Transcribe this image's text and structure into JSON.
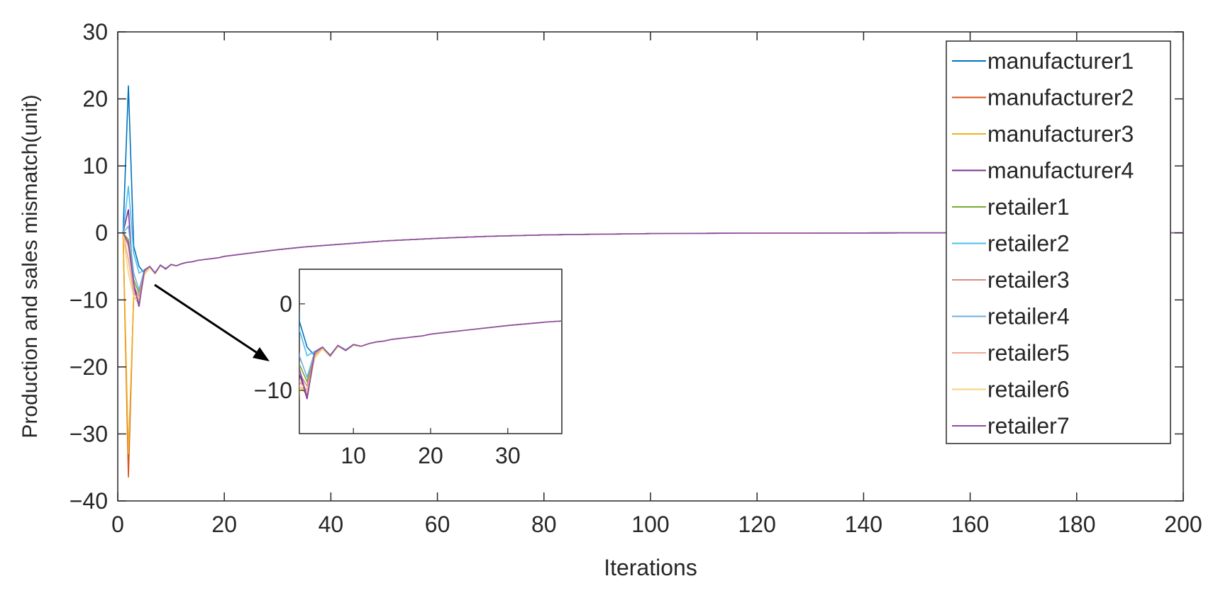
{
  "chart_data": {
    "type": "line",
    "title": "",
    "xlabel": "Iterations",
    "ylabel": "Production and sales mismatch(unit)",
    "xlim": [
      0,
      200
    ],
    "ylim": [
      -40,
      30
    ],
    "xticks": [
      0,
      20,
      40,
      60,
      80,
      100,
      120,
      140,
      160,
      180,
      200
    ],
    "yticks": [
      -40,
      -30,
      -20,
      -10,
      0,
      10,
      20,
      30
    ],
    "grid": false,
    "legend_position": "top-right",
    "x": [
      1,
      2,
      3,
      4,
      5,
      6,
      7,
      8,
      9,
      10,
      11,
      12,
      13,
      14,
      15,
      16,
      17,
      18,
      19,
      20,
      25,
      30,
      35,
      40,
      45,
      50,
      60,
      70,
      80,
      90,
      100,
      110,
      120,
      130,
      140,
      150,
      160,
      170,
      180,
      190,
      200
    ],
    "series": [
      {
        "name": "manufacturer1",
        "color": "#0072BD",
        "values": [
          0,
          22,
          -2,
          -5,
          -6,
          -5,
          -6,
          -4.8,
          -5.4,
          -4.7,
          -4.9,
          -4.6,
          -4.4,
          -4.3,
          -4.1,
          -4,
          -3.9,
          -3.8,
          -3.7,
          -3.5,
          -3,
          -2.5,
          -2.1,
          -1.8,
          -1.5,
          -1.2,
          -0.8,
          -0.5,
          -0.3,
          -0.2,
          -0.1,
          -0.06,
          -0.04,
          -0.02,
          -0.01,
          0,
          0,
          0,
          0,
          0,
          0
        ]
      },
      {
        "name": "manufacturer2",
        "color": "#D95319",
        "values": [
          0,
          -36.5,
          -9,
          -10,
          -6,
          -5,
          -6,
          -4.9,
          -5.4,
          -4.8,
          -4.9,
          -4.6,
          -4.4,
          -4.3,
          -4.1,
          -4,
          -3.9,
          -3.8,
          -3.7,
          -3.5,
          -3,
          -2.5,
          -2.1,
          -1.8,
          -1.5,
          -1.2,
          -0.8,
          -0.5,
          -0.3,
          -0.2,
          -0.1,
          -0.06,
          -0.04,
          -0.02,
          -0.01,
          0,
          0,
          0,
          0,
          0,
          0
        ]
      },
      {
        "name": "manufacturer3",
        "color": "#EDB120",
        "values": [
          0,
          -33,
          -9.5,
          -10.5,
          -6.2,
          -5.2,
          -6.1,
          -4.9,
          -5.4,
          -4.8,
          -4.9,
          -4.6,
          -4.4,
          -4.3,
          -4.1,
          -4,
          -3.9,
          -3.8,
          -3.7,
          -3.5,
          -3,
          -2.5,
          -2.1,
          -1.8,
          -1.5,
          -1.2,
          -0.8,
          -0.5,
          -0.3,
          -0.2,
          -0.1,
          -0.06,
          -0.04,
          -0.02,
          -0.01,
          0,
          0,
          0,
          0,
          0,
          0
        ]
      },
      {
        "name": "manufacturer4",
        "color": "#7E2F8E",
        "values": [
          0,
          3.5,
          -8,
          -11,
          -5.5,
          -5,
          -6,
          -4.8,
          -5.4,
          -4.7,
          -4.9,
          -4.6,
          -4.4,
          -4.3,
          -4.1,
          -4,
          -3.9,
          -3.8,
          -3.7,
          -3.5,
          -3,
          -2.5,
          -2.1,
          -1.8,
          -1.5,
          -1.2,
          -0.8,
          -0.5,
          -0.3,
          -0.2,
          -0.1,
          -0.06,
          -0.04,
          -0.02,
          -0.01,
          0,
          0,
          0,
          0,
          0,
          0
        ]
      },
      {
        "name": "retailer1",
        "color": "#77AC30",
        "values": [
          0,
          -1,
          -7,
          -9,
          -5.5,
          -5,
          -6,
          -4.8,
          -5.3,
          -4.7,
          -4.9,
          -4.6,
          -4.4,
          -4.3,
          -4.1,
          -4,
          -3.9,
          -3.8,
          -3.7,
          -3.5,
          -3,
          -2.5,
          -2.1,
          -1.8,
          -1.5,
          -1.2,
          -0.8,
          -0.5,
          -0.3,
          -0.2,
          -0.1,
          -0.06,
          -0.04,
          -0.02,
          -0.01,
          0,
          0,
          0,
          0,
          0,
          0
        ]
      },
      {
        "name": "retailer2",
        "color": "#4DBEEE",
        "values": [
          0,
          7,
          -3,
          -6,
          -5.5,
          -5,
          -6,
          -4.8,
          -5.3,
          -4.7,
          -4.9,
          -4.6,
          -4.4,
          -4.3,
          -4.1,
          -4,
          -3.9,
          -3.8,
          -3.7,
          -3.5,
          -3,
          -2.5,
          -2.1,
          -1.8,
          -1.5,
          -1.2,
          -0.8,
          -0.5,
          -0.3,
          -0.2,
          -0.1,
          -0.06,
          -0.04,
          -0.02,
          -0.01,
          0,
          0,
          0,
          0,
          0,
          0
        ]
      },
      {
        "name": "retailer3",
        "color": "#D98A8A",
        "values": [
          0,
          -2,
          -8,
          -9.5,
          -5.8,
          -5.1,
          -6,
          -4.8,
          -5.4,
          -4.7,
          -4.9,
          -4.6,
          -4.4,
          -4.3,
          -4.1,
          -4,
          -3.9,
          -3.8,
          -3.7,
          -3.5,
          -3,
          -2.5,
          -2.1,
          -1.8,
          -1.5,
          -1.2,
          -0.8,
          -0.5,
          -0.3,
          -0.2,
          -0.1,
          -0.06,
          -0.04,
          -0.02,
          -0.01,
          0,
          0,
          0,
          0,
          0,
          0
        ]
      },
      {
        "name": "retailer4",
        "color": "#6EAFE0",
        "values": [
          0,
          1,
          -6,
          -8.5,
          -5.5,
          -5,
          -5.9,
          -4.8,
          -5.3,
          -4.7,
          -4.9,
          -4.6,
          -4.4,
          -4.3,
          -4.1,
          -4,
          -3.9,
          -3.8,
          -3.7,
          -3.5,
          -3,
          -2.5,
          -2.1,
          -1.8,
          -1.5,
          -1.2,
          -0.8,
          -0.5,
          -0.3,
          -0.2,
          -0.1,
          -0.06,
          -0.04,
          -0.02,
          -0.01,
          0,
          0,
          0,
          0,
          0,
          0
        ]
      },
      {
        "name": "retailer5",
        "color": "#F0A992",
        "values": [
          0,
          -4,
          -9,
          -10,
          -6,
          -5.2,
          -6,
          -4.9,
          -5.4,
          -4.8,
          -4.9,
          -4.6,
          -4.4,
          -4.3,
          -4.1,
          -4,
          -3.9,
          -3.8,
          -3.7,
          -3.5,
          -3,
          -2.5,
          -2.1,
          -1.8,
          -1.5,
          -1.2,
          -0.8,
          -0.5,
          -0.3,
          -0.2,
          -0.1,
          -0.06,
          -0.04,
          -0.02,
          -0.01,
          0,
          0,
          0,
          0,
          0,
          0
        ]
      },
      {
        "name": "retailer6",
        "color": "#F7D27C",
        "values": [
          0,
          -6,
          -9.5,
          -10.2,
          -6.1,
          -5.2,
          -6.1,
          -4.9,
          -5.4,
          -4.8,
          -4.9,
          -4.6,
          -4.4,
          -4.3,
          -4.1,
          -4,
          -3.9,
          -3.8,
          -3.7,
          -3.5,
          -3,
          -2.5,
          -2.1,
          -1.8,
          -1.5,
          -1.2,
          -0.8,
          -0.5,
          -0.3,
          -0.2,
          -0.1,
          -0.06,
          -0.04,
          -0.02,
          -0.01,
          0,
          0,
          0,
          0,
          0,
          0
        ]
      },
      {
        "name": "retailer7",
        "color": "#8E4BA8",
        "values": [
          0,
          -1.5,
          -7.5,
          -10.8,
          -5.6,
          -5,
          -6,
          -4.8,
          -5.4,
          -4.7,
          -4.9,
          -4.6,
          -4.4,
          -4.3,
          -4.1,
          -4,
          -3.9,
          -3.8,
          -3.7,
          -3.5,
          -3,
          -2.5,
          -2.1,
          -1.8,
          -1.5,
          -1.2,
          -0.8,
          -0.5,
          -0.3,
          -0.2,
          -0.1,
          -0.06,
          -0.04,
          -0.02,
          -0.01,
          0,
          0,
          0,
          0,
          0,
          0
        ]
      }
    ],
    "inset": {
      "xlim": [
        3,
        37
      ],
      "ylim": [
        -15,
        4
      ],
      "xticks": [
        10,
        20,
        30
      ],
      "yticks": [
        -10,
        0
      ]
    }
  }
}
